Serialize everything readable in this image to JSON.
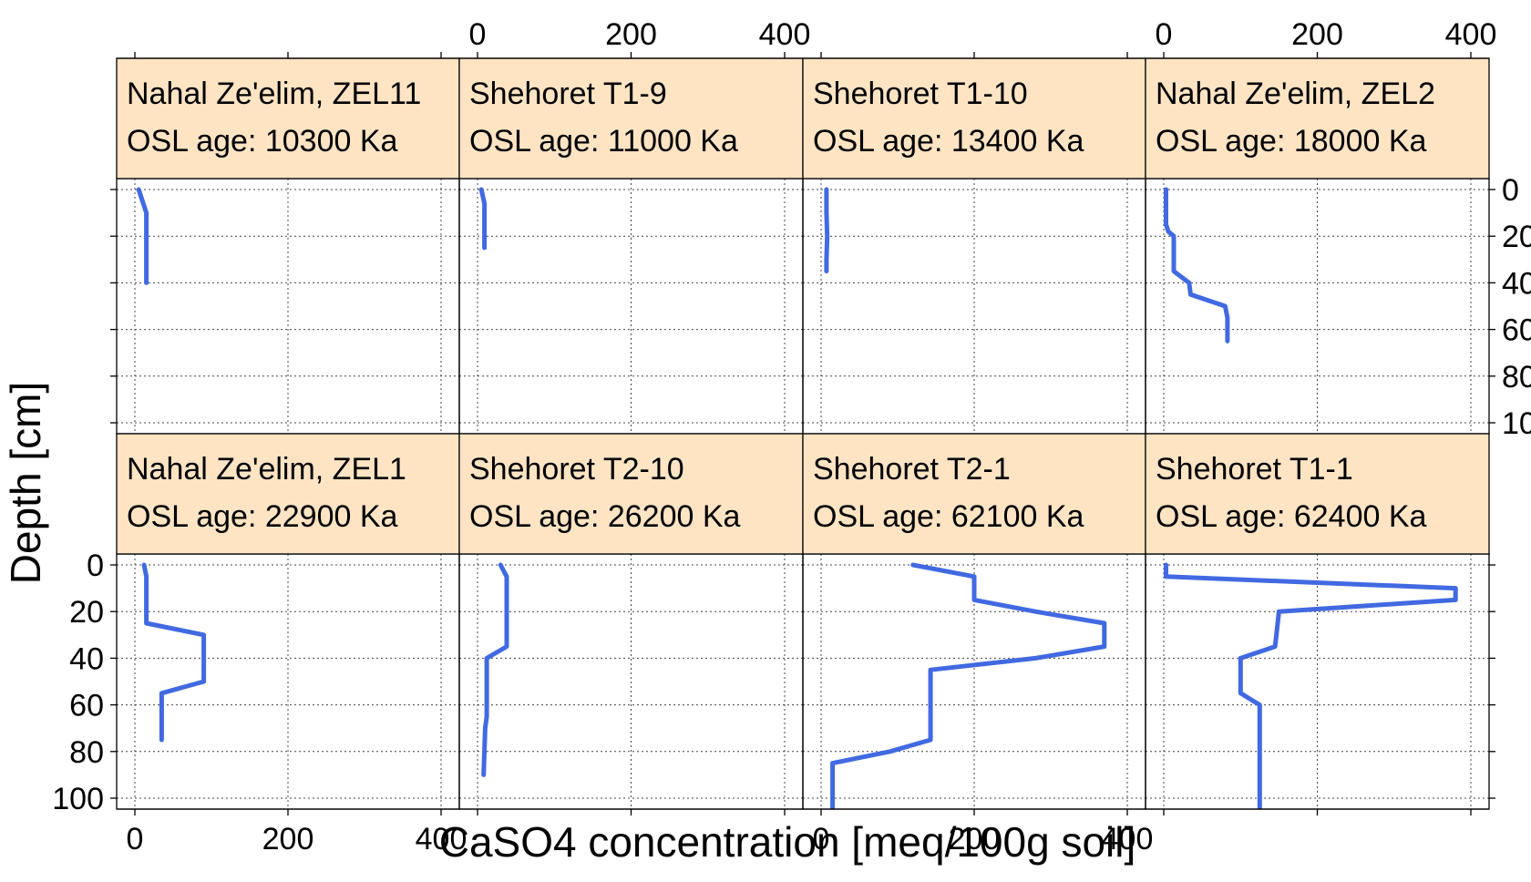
{
  "chart_data": {
    "type": "line",
    "layout": "lattice 4 columns x 2 rows",
    "xlabel": "CaSO4 concentration [meq/100g soil]",
    "ylabel": "Depth [cm]",
    "xlim": [
      0,
      400
    ],
    "ylim": [
      0,
      100
    ],
    "y_reversed": true,
    "x_ticks": [
      0,
      200,
      400
    ],
    "y_ticks": [
      0,
      20,
      40,
      60,
      80,
      100
    ],
    "grid": true,
    "line_color": "#4169E1",
    "strip_color": "#FFE4C4",
    "age_prefix": "OSL age:",
    "age_unit": "Ka",
    "panels": [
      {
        "name": "Nahal Ze'elim, ZEL11",
        "age": "10300",
        "points": [
          [
            5,
            0
          ],
          [
            8,
            3
          ],
          [
            12,
            7
          ],
          [
            15,
            10
          ],
          [
            15,
            20
          ],
          [
            15,
            30
          ],
          [
            15,
            40
          ]
        ]
      },
      {
        "name": "Shehoret T1-9",
        "age": "11000",
        "points": [
          [
            5,
            0
          ],
          [
            7,
            3
          ],
          [
            9,
            6
          ],
          [
            9,
            15
          ],
          [
            9,
            25
          ]
        ]
      },
      {
        "name": "Shehoret T1-10",
        "age": "13400",
        "points": [
          [
            7,
            0
          ],
          [
            7,
            10
          ],
          [
            8,
            20
          ],
          [
            7,
            30
          ],
          [
            7,
            35
          ]
        ]
      },
      {
        "name": "Nahal Ze'elim, ZEL2",
        "age": "18000",
        "points": [
          [
            3,
            0
          ],
          [
            3,
            15
          ],
          [
            6,
            18
          ],
          [
            13,
            20
          ],
          [
            13,
            35
          ],
          [
            33,
            40
          ],
          [
            35,
            45
          ],
          [
            80,
            50
          ],
          [
            83,
            55
          ],
          [
            83,
            65
          ]
        ]
      },
      {
        "name": "Nahal Ze'elim, ZEL1",
        "age": "22900",
        "points": [
          [
            12,
            0
          ],
          [
            15,
            5
          ],
          [
            15,
            25
          ],
          [
            90,
            30
          ],
          [
            90,
            50
          ],
          [
            35,
            55
          ],
          [
            35,
            75
          ]
        ]
      },
      {
        "name": "Shehoret T2-10",
        "age": "26200",
        "points": [
          [
            30,
            0
          ],
          [
            38,
            5
          ],
          [
            38,
            35
          ],
          [
            12,
            40
          ],
          [
            12,
            65
          ],
          [
            10,
            70
          ],
          [
            8,
            90
          ]
        ]
      },
      {
        "name": "Shehoret T2-1",
        "age": "62100",
        "points": [
          [
            120,
            0
          ],
          [
            200,
            5
          ],
          [
            200,
            15
          ],
          [
            280,
            20
          ],
          [
            370,
            25
          ],
          [
            370,
            35
          ],
          [
            280,
            40
          ],
          [
            143,
            45
          ],
          [
            143,
            75
          ],
          [
            90,
            80
          ],
          [
            15,
            85
          ],
          [
            15,
            105
          ]
        ]
      },
      {
        "name": "Shehoret T1-1",
        "age": "62400",
        "points": [
          [
            3,
            0
          ],
          [
            3,
            5
          ],
          [
            380,
            10
          ],
          [
            380,
            15
          ],
          [
            150,
            20
          ],
          [
            145,
            35
          ],
          [
            100,
            40
          ],
          [
            100,
            55
          ],
          [
            125,
            60
          ],
          [
            125,
            105
          ]
        ]
      }
    ]
  }
}
